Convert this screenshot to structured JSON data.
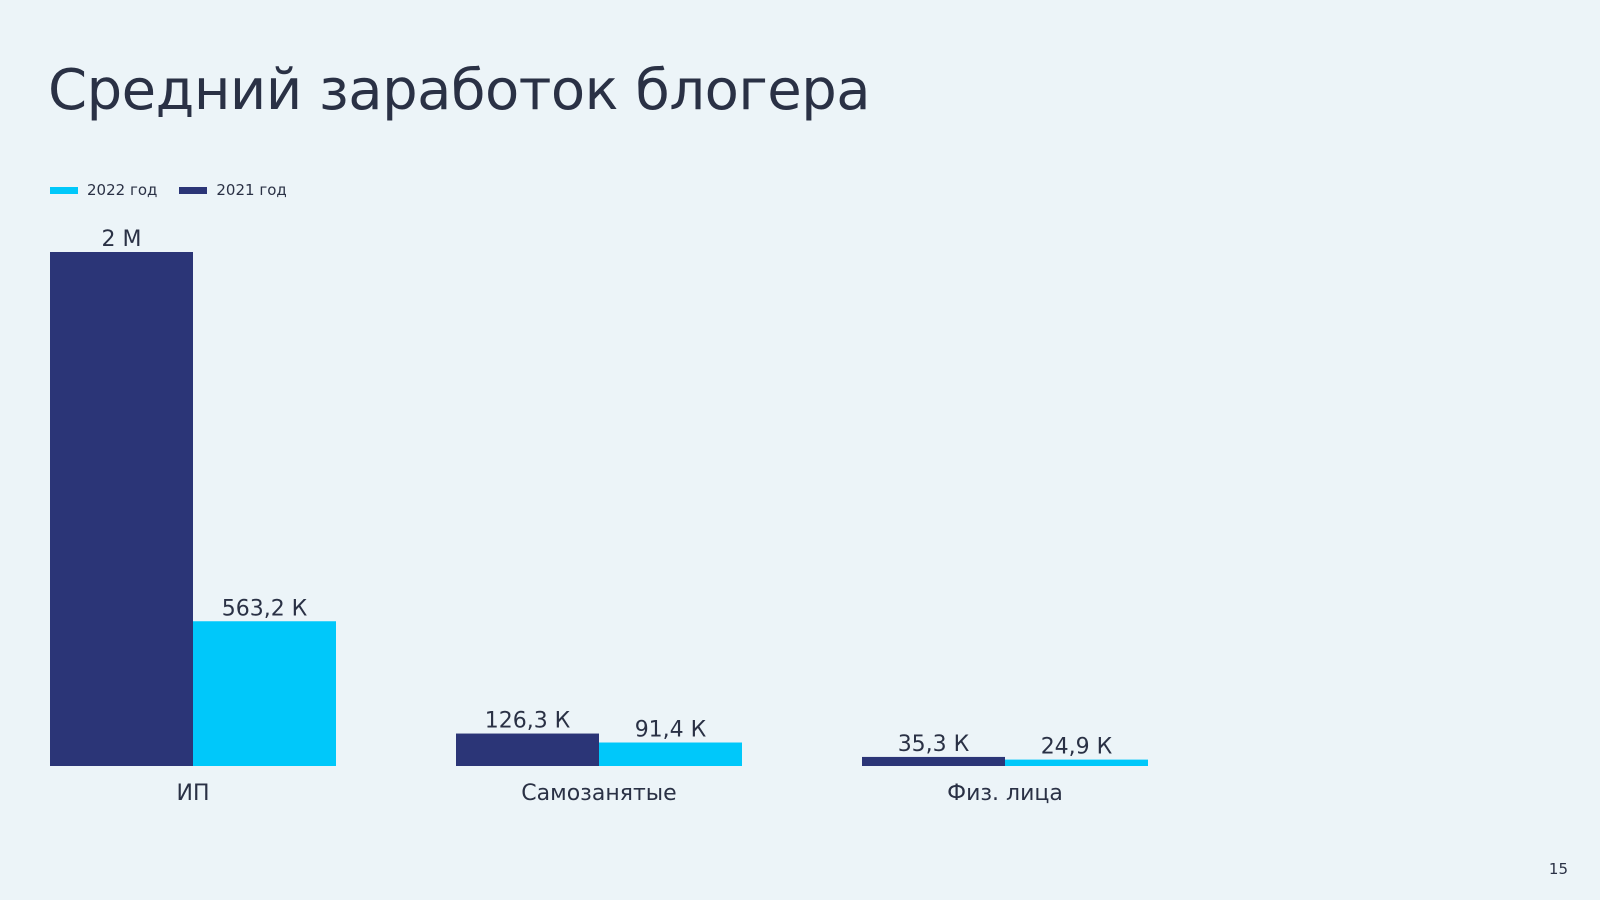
{
  "page": {
    "title": "Средний заработок блогера",
    "page_number": "15"
  },
  "legend": {
    "items": [
      {
        "label": "2022 год",
        "color": "#00c8fa"
      },
      {
        "label": "2021 год",
        "color": "#2b3577"
      }
    ]
  },
  "chart_data": {
    "type": "bar",
    "title": "Средний заработок блогера",
    "categories": [
      "ИП",
      "Самозанятые",
      "Физ. лица"
    ],
    "series": [
      {
        "name": "2021 год",
        "color": "#2b3577",
        "values": [
          2000000,
          126300,
          35300
        ],
        "labels": [
          "2 М",
          "126,3 К",
          "35,3 К"
        ]
      },
      {
        "name": "2022 год",
        "color": "#00c8fa",
        "values": [
          563200,
          91400,
          24900
        ],
        "labels": [
          "563,2 К",
          "91,4 К",
          "24,9 К"
        ]
      }
    ],
    "xlabel": "",
    "ylabel": "",
    "ylim": [
      0,
      2000000
    ],
    "grid": false,
    "legend_position": "top-left"
  }
}
